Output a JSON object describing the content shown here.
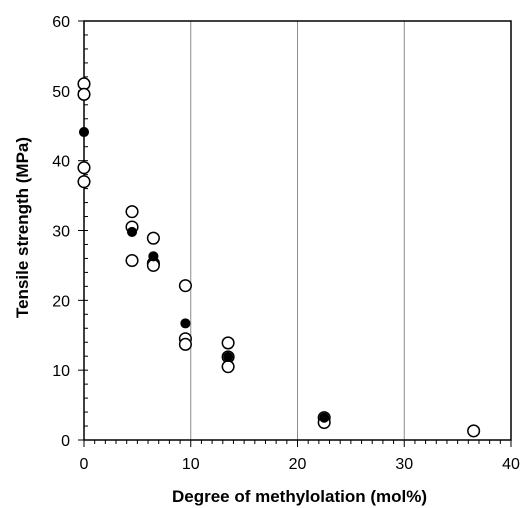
{
  "chart_data": {
    "type": "scatter",
    "title": "",
    "xlabel": "Degree of methylolation (mol%)",
    "ylabel": "Tensile strength (MPa)",
    "xlim": [
      0,
      40
    ],
    "ylim": [
      0,
      60
    ],
    "x_ticks": [
      "0",
      "10",
      "20",
      "30",
      "40"
    ],
    "y_ticks": [
      "0",
      "10",
      "20",
      "30",
      "40",
      "50",
      "60"
    ],
    "grid": "vertical major lines",
    "legend": "none",
    "series": [
      {
        "marker": "open-circle",
        "color": "#000000",
        "points": [
          {
            "x": 0,
            "y": 51.0
          },
          {
            "x": 0,
            "y": 49.5
          },
          {
            "x": 0,
            "y": 39.0
          },
          {
            "x": 0,
            "y": 37.0
          },
          {
            "x": 4.5,
            "y": 32.7
          },
          {
            "x": 4.5,
            "y": 30.5
          },
          {
            "x": 4.5,
            "y": 25.7
          },
          {
            "x": 6.5,
            "y": 28.9
          },
          {
            "x": 6.5,
            "y": 25.3
          },
          {
            "x": 6.5,
            "y": 25.0
          },
          {
            "x": 9.5,
            "y": 22.1
          },
          {
            "x": 9.5,
            "y": 14.5
          },
          {
            "x": 9.5,
            "y": 13.7
          },
          {
            "x": 13.5,
            "y": 13.9
          },
          {
            "x": 13.5,
            "y": 11.9
          },
          {
            "x": 13.5,
            "y": 10.5
          },
          {
            "x": 22.5,
            "y": 3.2
          },
          {
            "x": 22.5,
            "y": 2.5
          },
          {
            "x": 36.5,
            "y": 1.3
          }
        ]
      },
      {
        "marker": "filled-circle",
        "color": "#000000",
        "points": [
          {
            "x": 0,
            "y": 44.1
          },
          {
            "x": 4.5,
            "y": 29.8
          },
          {
            "x": 6.5,
            "y": 26.3
          },
          {
            "x": 9.5,
            "y": 16.7
          },
          {
            "x": 13.5,
            "y": 11.9
          },
          {
            "x": 22.5,
            "y": 3.2
          }
        ]
      }
    ]
  }
}
